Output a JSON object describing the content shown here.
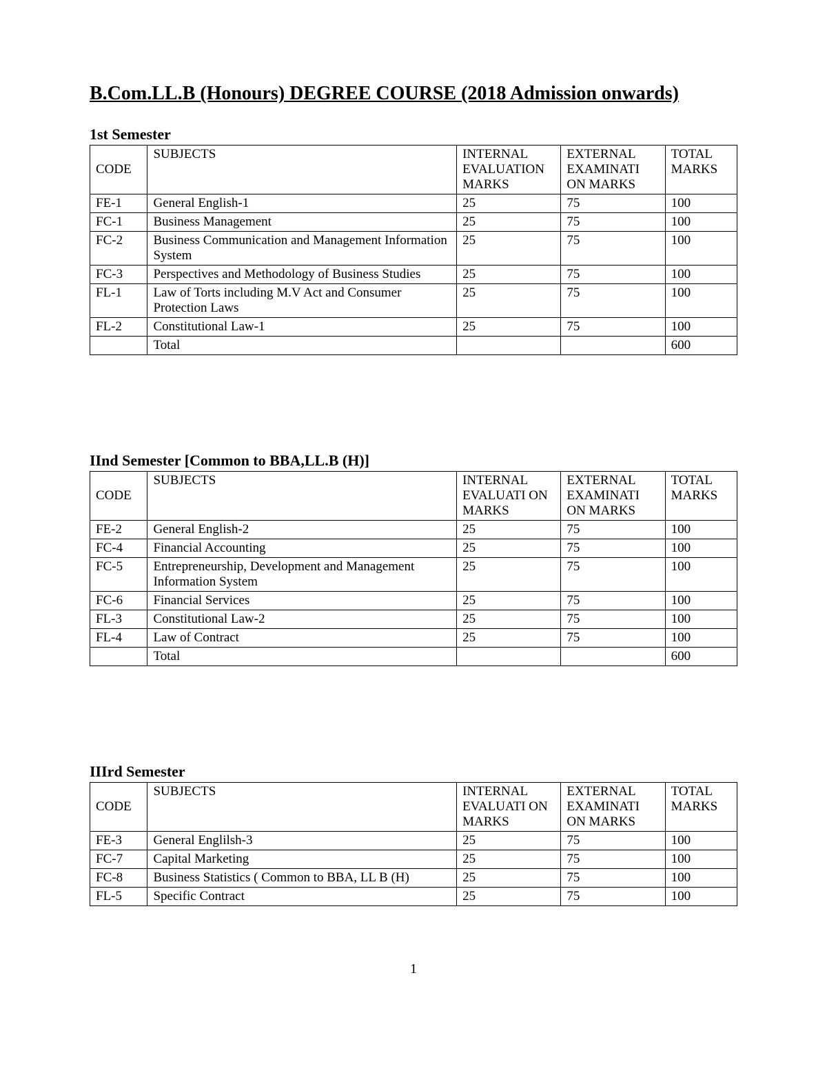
{
  "title": "B.Com.LL.B (Honours) DEGREE COURSE (2018 Admission onwards)",
  "page_number": "1",
  "colors": {
    "text": "#000000",
    "background": "#ffffff",
    "border": "#000000"
  },
  "headers": {
    "code": "CODE",
    "subjects": "SUBJECTS",
    "internal": "INTERNAL EVALUATION MARKS",
    "internal_short": "INTERNAL EVALUATI ON MARKS",
    "external": "EXTERNAL EXAMINATI ON MARKS",
    "total": "TOTAL MARKS"
  },
  "semesters": [
    {
      "title": "1st Semester",
      "header_bold": false,
      "rows": [
        {
          "code": "FE-1",
          "subject": "General English-1",
          "internal": "25",
          "external": "75",
          "total": "100",
          "justify": false
        },
        {
          "code": "FC-1",
          "subject": "Business Management",
          "internal": "25",
          "external": "75",
          "total": "100",
          "justify": false
        },
        {
          "code": "FC-2",
          "subject": "Business Communication and Management Information System",
          "internal": "25",
          "external": "75",
          "total": "100",
          "justify": true
        },
        {
          "code": "FC-3",
          "subject": "Perspectives and Methodology of Business Studies",
          "internal": "25",
          "external": "75",
          "total": "100",
          "justify": true
        },
        {
          "code": "FL-1",
          "subject": "Law of Torts including M.V Act and Consumer Protection Laws",
          "internal": "25",
          "external": "75",
          "total": "100",
          "justify": true
        },
        {
          "code": "FL-2",
          "subject": "Constitutional Law-1",
          "internal": "25",
          "external": "75",
          "total": "100",
          "justify": false
        }
      ],
      "total_label": "Total",
      "grand_total": "600"
    },
    {
      "title": "IInd Semester [Common to BBA,LL.B (H)]",
      "header_bold": true,
      "rows": [
        {
          "code": "FE-2",
          "subject": "General English-2",
          "internal": "25",
          "external": "75",
          "total": "100",
          "justify": false
        },
        {
          "code": "FC-4",
          "subject": "Financial Accounting",
          "internal": "25",
          "external": "75",
          "total": "100",
          "justify": false
        },
        {
          "code": "FC-5",
          "subject": "Entrepreneurship, Development and Management Information System",
          "internal": "25",
          "external": "75",
          "total": "100",
          "justify": true
        },
        {
          "code": "FC-6",
          "subject": "Financial Services",
          "internal": "25",
          "external": "75",
          "total": "100",
          "justify": false
        },
        {
          "code": "FL-3",
          "subject": "Constitutional Law-2",
          "internal": "25",
          "external": "75",
          "total": "100",
          "justify": false
        },
        {
          "code": "FL-4",
          "subject": "Law of Contract",
          "internal": "25",
          "external": "75",
          "total": "100",
          "justify": false
        }
      ],
      "total_label": "Total",
      "grand_total": "600"
    },
    {
      "title": "IIIrd Semester",
      "header_bold": true,
      "rows": [
        {
          "code": "FE-3",
          "subject": "General Englilsh-3",
          "internal": "25",
          "external": "75",
          "total": "100",
          "justify": false
        },
        {
          "code": "FC-7",
          "subject": "Capital Marketing",
          "internal": "25",
          "external": "75",
          "total": "100",
          "justify": false
        },
        {
          "code": "FC-8",
          "subject": "Business Statistics ( Common to BBA, LL B (H)",
          "internal": "25",
          "external": "75",
          "total": "100",
          "justify": false
        },
        {
          "code": "FL-5",
          "subject": "Specific Contract",
          "internal": "25",
          "external": "75",
          "total": "100",
          "justify": false
        }
      ],
      "total_label": "",
      "grand_total": ""
    }
  ]
}
